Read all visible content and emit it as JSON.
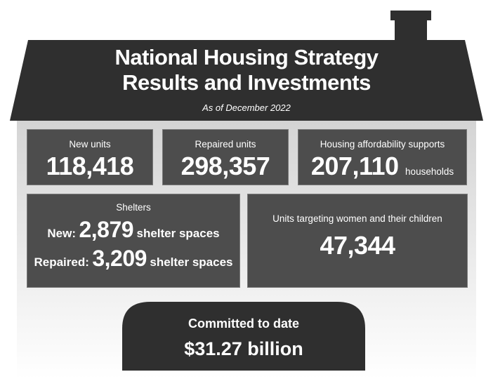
{
  "colors": {
    "roof": "#2f2f2f",
    "panel": "#4d4d4d",
    "wall_top": "#d9d9d9",
    "wall_bottom": "#ffffff",
    "door": "#2f2f2f",
    "text": "#ffffff"
  },
  "header": {
    "title_line1": "National Housing Strategy",
    "title_line2": "Results and Investments",
    "subtitle": "As of December 2022"
  },
  "stats": {
    "new_units": {
      "label": "New units",
      "value": "118,418"
    },
    "repaired_units": {
      "label": "Repaired units",
      "value": "298,357"
    },
    "affordability": {
      "label": "Housing affordability supports",
      "value": "207,110",
      "unit": "households"
    },
    "shelters": {
      "label": "Shelters",
      "new_label": "New:",
      "new_value": "2,879",
      "repaired_label": "Repaired:",
      "repaired_value": "3,209",
      "unit": "shelter spaces"
    },
    "women_children": {
      "label": "Units targeting women and their children",
      "value": "47,344"
    }
  },
  "committed": {
    "label": "Committed to date",
    "value": "$31.27 billion"
  }
}
